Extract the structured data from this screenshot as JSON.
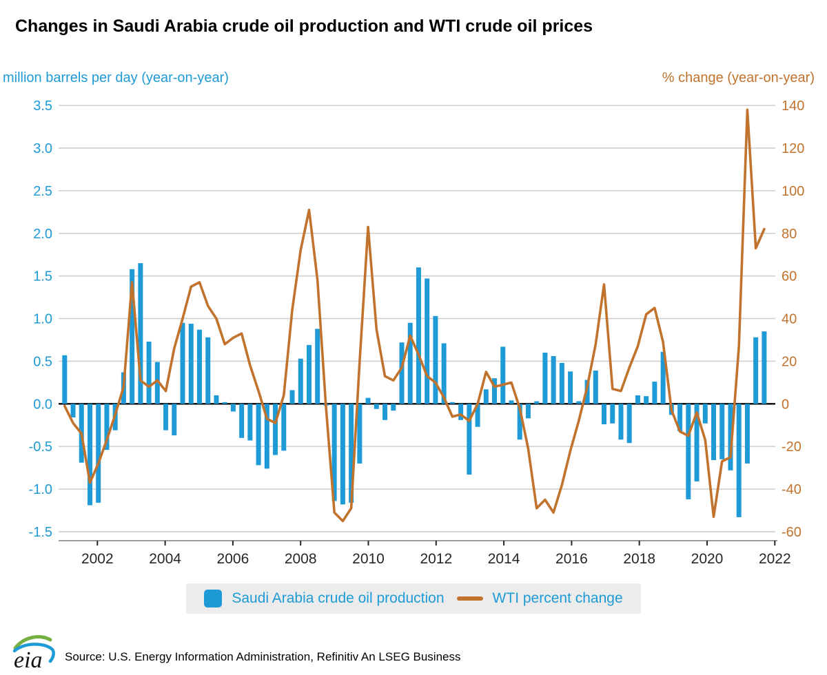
{
  "title": "Changes in Saudi Arabia crude oil production and WTI crude oil prices",
  "colors": {
    "production_blue": "#1e9bd6",
    "wti_orange": "#c1722c",
    "grid": "#cccccc",
    "zero_line": "#000000",
    "axis_line": "#9b9b9b",
    "x_tick_text": "#262626",
    "legend_bg": "#ececec",
    "logo_green": "#76b043",
    "logo_blue": "#1e9bd6"
  },
  "left_axis": {
    "label": "million barrels per day (year-on-year)",
    "tick_labels": [
      "3.5",
      "3.0",
      "2.5",
      "2.0",
      "1.5",
      "1.0",
      "0.5",
      "0.0",
      "-0.5",
      "-1.0",
      "-1.5"
    ],
    "tick_values": [
      3.5,
      3.0,
      2.5,
      2.0,
      1.5,
      1.0,
      0.5,
      0.0,
      -0.5,
      -1.0,
      -1.5
    ],
    "range": [
      -1.5,
      3.5
    ]
  },
  "right_axis": {
    "label": "% change (year-on-year)",
    "tick_labels": [
      "140",
      "120",
      "100",
      "80",
      "60",
      "40",
      "20",
      "0",
      "-20",
      "-40",
      "-60"
    ],
    "tick_values": [
      140,
      120,
      100,
      80,
      60,
      40,
      20,
      0,
      -20,
      -40,
      -60
    ],
    "range": [
      -60,
      140
    ]
  },
  "x_axis": {
    "tick_years": [
      2002,
      2004,
      2006,
      2008,
      2010,
      2012,
      2014,
      2016,
      2018,
      2020,
      2022
    ]
  },
  "legend": {
    "bar_label": "Saudi Arabia crude oil production",
    "line_label": "WTI percent change"
  },
  "footer": {
    "logo_text": "eia",
    "source": "Source: U.S. Energy Information Administration, Refinitiv An LSEG Business"
  },
  "chart_data": {
    "type": "bar",
    "subtype": "dual-axis bar + line, quarterly",
    "title": "Changes in Saudi Arabia crude oil production and WTI crude oil prices",
    "x_start": "2001-Q1",
    "x_end": "2021-Q4",
    "frequency": "quarterly",
    "grid": true,
    "legend_position": "bottom",
    "series": [
      {
        "name": "Saudi Arabia crude oil production",
        "type": "bar",
        "axis": "left",
        "units": "million barrels per day (year-on-year)",
        "values": [
          0.57,
          -0.16,
          -0.69,
          -1.19,
          -1.16,
          -0.54,
          -0.31,
          0.37,
          1.58,
          1.65,
          0.73,
          0.49,
          -0.31,
          -0.37,
          0.95,
          0.94,
          0.87,
          0.78,
          0.1,
          0.02,
          -0.09,
          -0.4,
          -0.43,
          -0.72,
          -0.76,
          -0.6,
          -0.55,
          0.16,
          0.53,
          0.69,
          0.88,
          -0.02,
          -1.14,
          -1.18,
          -1.16,
          -0.7,
          0.07,
          -0.06,
          -0.19,
          -0.08,
          0.72,
          0.95,
          1.6,
          1.47,
          1.03,
          0.71,
          0.02,
          -0.19,
          -0.83,
          -0.27,
          0.17,
          0.3,
          0.67,
          0.04,
          -0.42,
          -0.17,
          0.03,
          0.6,
          0.56,
          0.48,
          0.38,
          0.03,
          0.28,
          0.39,
          -0.24,
          -0.23,
          -0.42,
          -0.46,
          0.1,
          0.09,
          0.26,
          0.61,
          -0.13,
          -0.32,
          -1.12,
          -0.91,
          -0.23,
          -0.66,
          -0.65,
          -0.78,
          -1.33,
          -0.7,
          0.78,
          0.85
        ]
      },
      {
        "name": "WTI percent change",
        "type": "line",
        "axis": "right",
        "units": "% change (year-on-year)",
        "values": [
          -1,
          -9,
          -14,
          -37,
          -28,
          -17,
          -5,
          8,
          57,
          11,
          8,
          11,
          6,
          26,
          40,
          55,
          57,
          46,
          40,
          28,
          31,
          33,
          18,
          6,
          -7,
          -9,
          4,
          44,
          72,
          91,
          58,
          -1,
          -51,
          -55,
          -49,
          20,
          83,
          35,
          13,
          11,
          17,
          32,
          23,
          13,
          10,
          3,
          -6,
          -5,
          -8,
          0,
          15,
          8,
          9,
          10,
          -2,
          -21,
          -49,
          -45,
          -51,
          -38,
          -22,
          -8,
          8,
          28,
          56,
          7,
          6,
          17,
          27,
          42,
          45,
          29,
          -3,
          -13,
          -15,
          -4,
          -17,
          -53,
          -27,
          -25,
          27,
          138,
          73,
          82
        ]
      }
    ]
  }
}
